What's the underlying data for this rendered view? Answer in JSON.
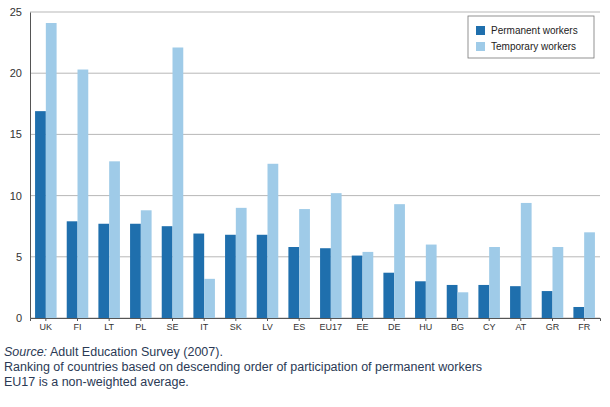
{
  "chart_data": {
    "type": "bar",
    "categories": [
      "UK",
      "FI",
      "LT",
      "PL",
      "SE",
      "IT",
      "SK",
      "LV",
      "ES",
      "EU17",
      "EE",
      "DE",
      "HU",
      "BG",
      "CY",
      "AT",
      "GR",
      "FR"
    ],
    "series": [
      {
        "name": "Permanent workers",
        "color": "#1f6fad",
        "values": [
          16.9,
          7.9,
          7.7,
          7.7,
          7.5,
          6.9,
          6.8,
          6.8,
          5.8,
          5.7,
          5.1,
          3.7,
          3.0,
          2.7,
          2.7,
          2.6,
          2.2,
          0.9
        ]
      },
      {
        "name": "Temporary workers",
        "color": "#9fcbe8",
        "values": [
          24.1,
          20.3,
          12.8,
          8.8,
          22.1,
          3.2,
          9.0,
          12.6,
          8.9,
          10.2,
          5.4,
          9.3,
          6.0,
          2.1,
          5.8,
          9.4,
          5.8,
          7.0
        ]
      }
    ],
    "ylim": [
      0,
      25
    ],
    "yticks": [
      0,
      5,
      10,
      15,
      20,
      25
    ],
    "grid": true,
    "legend": "top-right",
    "notes": [
      "Source: Adult Education Survey (2007).",
      "Ranking of countries based on descending order of participation of permanent workers",
      "EU17 is a non-weighted average."
    ]
  }
}
